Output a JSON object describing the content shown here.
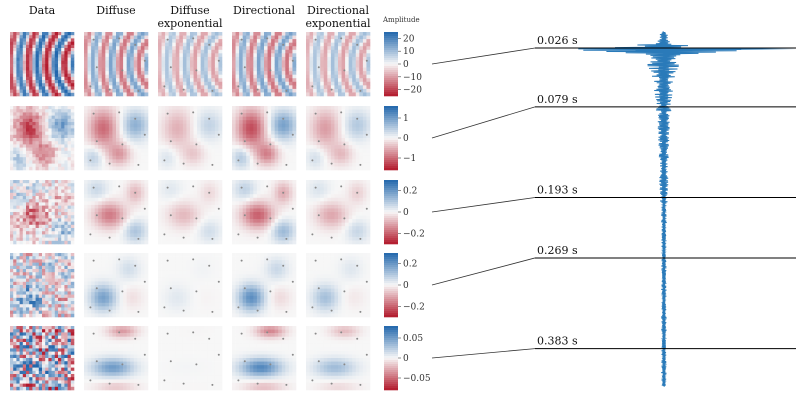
{
  "columns": [
    "Data",
    "Diffuse",
    "Diffuse exponential",
    "Directional",
    "Directional exponential"
  ],
  "column_header_lines": [
    [
      "Data"
    ],
    [
      "Diffuse"
    ],
    [
      "Diffuse",
      "exponential"
    ],
    [
      "Directional"
    ],
    [
      "Directional",
      "exponential"
    ]
  ],
  "colorbar_title": "Amplitude",
  "colorbars": [
    {
      "ticks": [
        "20",
        "10",
        "0",
        "−10",
        "−20"
      ],
      "values": [
        20,
        10,
        0,
        -10,
        -20
      ],
      "range": [
        -25,
        25
      ]
    },
    {
      "ticks": [
        "1",
        "0",
        "−1"
      ],
      "values": [
        1,
        0,
        -1
      ],
      "range": [
        -1.6,
        1.6
      ]
    },
    {
      "ticks": [
        "0.2",
        "0",
        "−0.2"
      ],
      "values": [
        0.2,
        0,
        -0.2
      ],
      "range": [
        -0.3,
        0.3
      ]
    },
    {
      "ticks": [
        "0.2",
        "0",
        "−0.2"
      ],
      "values": [
        0.2,
        0,
        -0.2
      ],
      "range": [
        -0.3,
        0.3
      ]
    },
    {
      "ticks": [
        "0.05",
        "0",
        "−0.05"
      ],
      "values": [
        0.05,
        0,
        -0.05
      ],
      "range": [
        -0.08,
        0.08
      ]
    }
  ],
  "times": [
    "0.026 s",
    "0.079 s",
    "0.193 s",
    "0.269 s",
    "0.383 s"
  ],
  "time_values_s": [
    0.026,
    0.079,
    0.193,
    0.269,
    0.383
  ],
  "colors": {
    "negative": "#b2182b",
    "neutral": "#f7f7f7",
    "positive": "#2166ac",
    "waveform": "#2a7ab9",
    "line": "#000000",
    "connector": "#333333",
    "mic_dot": "#8a8a8a"
  }
}
